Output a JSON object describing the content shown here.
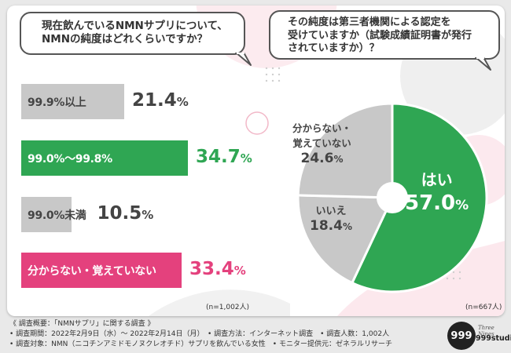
{
  "colors": {
    "green": "#2fa653",
    "gray": "#c8c8c8",
    "pink": "#e4417d",
    "dark_text": "#444444"
  },
  "left_question": {
    "line1": "現在飲んでいるNMNサプリについて、",
    "line2": "NMNの純度はどれくらいですか？"
  },
  "right_question": {
    "line1": "その純度は第三者機関による認定を",
    "line2": "受けていますか（試験成績証明書が発行",
    "line3": "されていますか）？"
  },
  "chart_data": [
    {
      "type": "bar",
      "title": "現在飲んでいるNMNサプリについて、NMNの純度はどれくらいですか？",
      "categories": [
        "99.9%以上",
        "99.0%〜99.8%",
        "99.0%未満",
        "分からない・覚えていない"
      ],
      "values": [
        21.4,
        34.7,
        10.5,
        33.4
      ],
      "value_labels": [
        {
          "num": "21.4",
          "unit": "%"
        },
        {
          "num": "34.7",
          "unit": "%"
        },
        {
          "num": "10.5",
          "unit": "%"
        },
        {
          "num": "33.4",
          "unit": "%"
        }
      ],
      "orientation": "horizontal",
      "xlim": [
        0,
        40
      ],
      "n_label": "(n=1,002人)"
    },
    {
      "type": "pie",
      "title": "その純度は第三者機関による認定を受けていますか（試験成績証明書が発行されていますか）？",
      "categories": [
        "はい",
        "いいえ",
        "分からない・覚えていない"
      ],
      "values": [
        57.0,
        18.4,
        24.6
      ],
      "slice_labels": [
        {
          "label": "はい",
          "num": "57.0",
          "unit": "%"
        },
        {
          "label": "いいえ",
          "num": "18.4",
          "unit": "%"
        },
        {
          "label_line1": "分からない・",
          "label_line2": "覚えていない",
          "num": "24.6",
          "unit": "%"
        }
      ],
      "n_label": "(n=667人)"
    }
  ],
  "footer": {
    "line1": "《 調査概要：「NMNサプリ」に関する調査 》",
    "line2": "• 調査期間：2022年2月9日（水）〜 2022年2月14日（月）　• 調査方法：インターネット調査　• 調査人数：1,002人",
    "line3": "• 調査対象：NMN（ニコチンアミドモノヌクレオチド）サプリを飲んでいる女性　• モニター提供元：ゼネラルリサーチ"
  },
  "logo": {
    "mark": "999",
    "script": "Three Nines",
    "name": "999studio"
  }
}
